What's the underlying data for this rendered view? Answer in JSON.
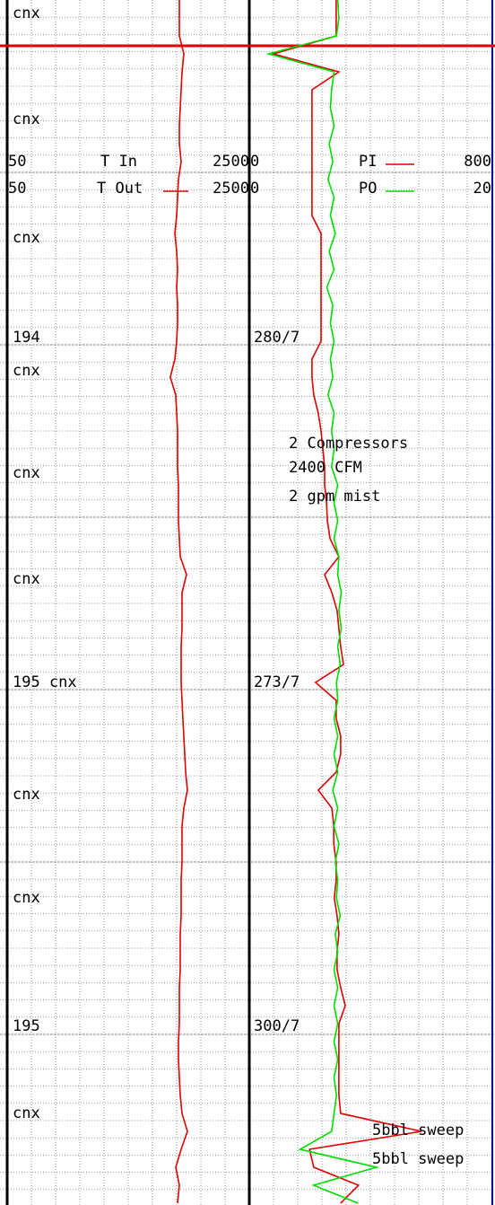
{
  "chart_data": {
    "type": "well-log",
    "tracks": [
      {
        "series": [
          {
            "name": "T In",
            "xlim": [
              50,
              2500
            ]
          },
          {
            "name": "T Out",
            "xlim": [
              50,
              2500
            ],
            "color": "#e00000",
            "values": [
              1792,
              1792,
              1792,
              1838,
              1819,
              1810,
              1801,
              1792,
              1792,
              1810,
              1783,
              1774,
              1765,
              1747,
              1765,
              1774,
              1765,
              1774,
              1774,
              1765,
              1747,
              1701,
              1756,
              1765,
              1774,
              1774,
              1774,
              1783,
              1783,
              1783,
              1792,
              1801,
              1865,
              1819,
              1819,
              1819,
              1810,
              1810,
              1810,
              1819,
              1828,
              1838,
              1847,
              1856,
              1874,
              1838,
              1819,
              1819,
              1819,
              1810,
              1810,
              1810,
              1801,
              1801,
              1801,
              1792,
              1792,
              1792,
              1783,
              1783,
              1792,
              1801,
              1819,
              1874,
              1810,
              1756,
              1792,
              1774
            ]
          }
        ]
      },
      {
        "series": [
          {
            "name": "PI",
            "xlim": [
              0,
              800
            ],
            "color": "#e00000",
            "values": [
              287,
              287,
              287,
              80,
              296,
              207,
              207,
              207,
              207,
              207,
              207,
              207,
              207,
              237,
              237,
              237,
              237,
              237,
              237,
              237,
              207,
              207,
              213,
              228,
              237,
              243,
              249,
              249,
              255,
              258,
              267,
              296,
              249,
              273,
              290,
              296,
              302,
              311,
              219,
              287,
              287,
              302,
              302,
              287,
              228,
              273,
              279,
              279,
              287,
              287,
              281,
              290,
              296,
              290,
              290,
              302,
              317,
              296,
              296,
              296,
              296,
              296,
              302,
              569,
              199,
              213,
              361,
              302
            ]
          },
          {
            "name": "PO",
            "xlim": [
              0,
              20
            ],
            "color": "#00dd00",
            "values": [
              7.3,
              7.4,
              7.2,
              1.6,
              7.0,
              6.8,
              6.7,
              7.0,
              6.6,
              6.9,
              6.5,
              7.0,
              6.7,
              7.1,
              6.6,
              7.0,
              6.4,
              6.9,
              6.7,
              7.0,
              6.7,
              6.9,
              6.5,
              7.0,
              6.8,
              7.0,
              6.8,
              7.3,
              7.0,
              7.3,
              7.0,
              7.4,
              7.3,
              7.6,
              7.4,
              7.6,
              7.3,
              7.5,
              7.2,
              7.3,
              7.0,
              7.3,
              7.0,
              7.3,
              6.9,
              7.3,
              7.0,
              7.4,
              7.1,
              7.3,
              7.2,
              7.5,
              7.1,
              7.3,
              7.0,
              7.3,
              7.0,
              7.3,
              7.0,
              7.3,
              7.0,
              7.2,
              7.0,
              6.8,
              4.2,
              10.5,
              5.3,
              9.0
            ]
          }
        ]
      }
    ],
    "left_notes": [
      "cnx",
      "cnx",
      "cnx",
      "194",
      "cnx",
      "cnx",
      "cnx",
      "195 cnx",
      "cnx",
      "cnx",
      "195",
      "cnx"
    ],
    "right_notes": [
      "280/7",
      "273/7",
      "300/7"
    ],
    "remarks": [
      "2 Compressors",
      "2400 CFM",
      "2 gpm mist"
    ],
    "sweeps": [
      "5bbl sweep",
      "5bbl sweep"
    ]
  }
}
